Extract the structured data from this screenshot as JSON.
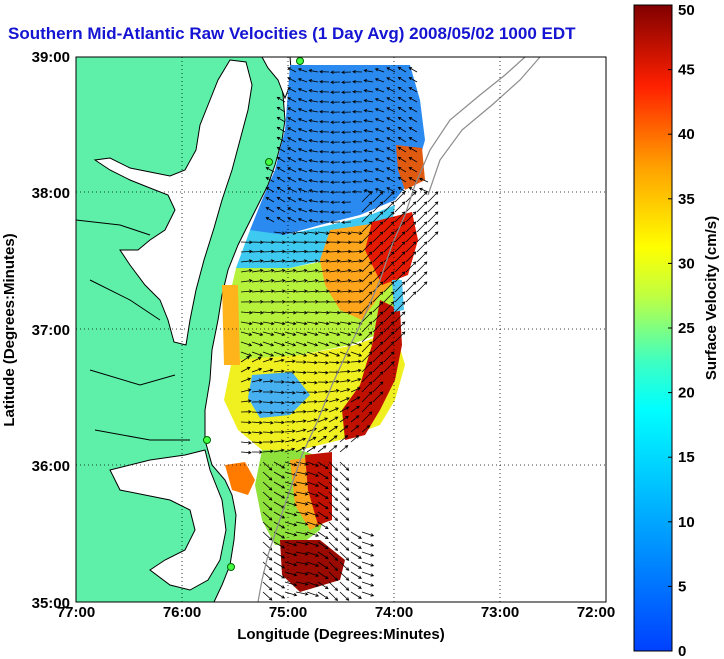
{
  "title": "Southern Mid-Atlantic Raw Velocities (1 Day Avg) 2008/05/02 1000 EDT",
  "chart_data": {
    "type": "heatmap",
    "title": "Southern Mid-Atlantic Raw Velocities (1 Day Avg) 2008/05/02 1000 EDT",
    "xlabel": "Longitude (Degrees:Minutes)",
    "ylabel": "Latitude (Degrees:Minutes)",
    "x_ticks": [
      -77,
      -76,
      -75,
      -74,
      -73,
      -72
    ],
    "x_tick_labels": [
      "77:00",
      "76:00",
      "75:00",
      "74:00",
      "73:00",
      "72:00"
    ],
    "y_ticks": [
      35,
      36,
      37,
      38,
      39
    ],
    "y_tick_labels": [
      "35:00",
      "36:00",
      "37:00",
      "38:00",
      "39:00"
    ],
    "xlim": [
      -77,
      -72
    ],
    "ylim": [
      35,
      39
    ],
    "grid": true,
    "colorbar": {
      "label": "Surface Velocity (cm/s)",
      "range": [
        0,
        50
      ],
      "ticks": [
        0,
        5,
        10,
        15,
        20,
        25,
        30,
        35,
        40,
        45,
        50
      ],
      "colormap": "jet"
    },
    "colors": {
      "land": "#5ef0a8",
      "coast": "#000000",
      "grid": "#000000",
      "bathymetry": "#8c8c8c"
    }
  }
}
